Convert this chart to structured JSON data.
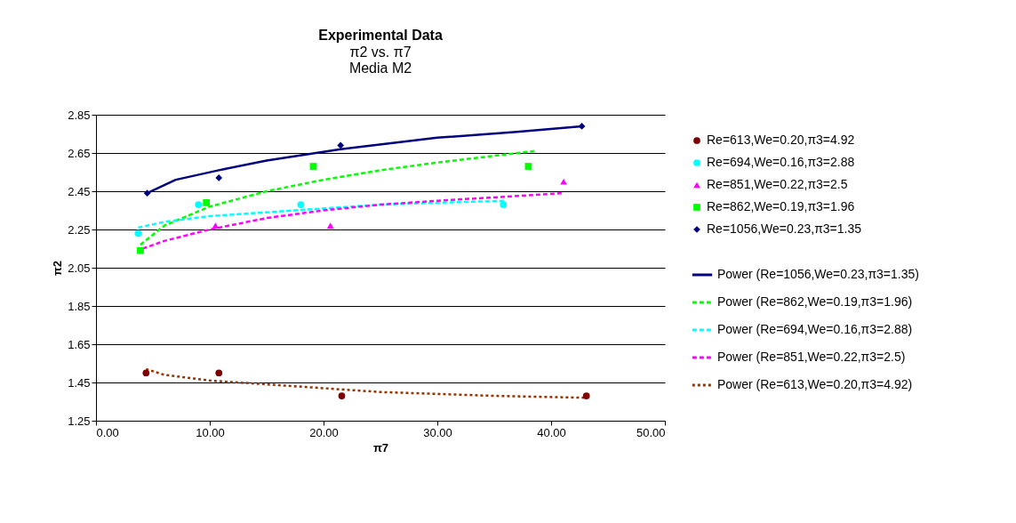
{
  "chart_data": {
    "type": "line",
    "title": "Experimental Data",
    "subtitle": "π2 vs. π7\nMedia M2",
    "xlabel": "π7",
    "ylabel": "π2",
    "xlim": [
      0,
      50
    ],
    "xticks": [
      {
        "value": 0,
        "label": "0.00"
      },
      {
        "value": 10,
        "label": "10.00"
      },
      {
        "value": 20,
        "label": "20.00"
      },
      {
        "value": 30,
        "label": "30.00"
      },
      {
        "value": 40,
        "label": "40.00"
      },
      {
        "value": 50,
        "label": "50.00"
      }
    ],
    "ylim": [
      1.25,
      2.85
    ],
    "yticks": [
      1.25,
      1.45,
      1.65,
      1.85,
      2.05,
      2.25,
      2.45,
      2.65,
      2.85
    ],
    "grid": "y",
    "legend": "right",
    "series": [
      {
        "name": "Re=613,We=0.20,π3=4.92",
        "type": "scatter",
        "marker": "circle",
        "color": "#800000",
        "x": [
          4.4,
          10.8,
          21.6,
          43.1
        ],
        "values": [
          1.5,
          1.5,
          1.38,
          1.38
        ]
      },
      {
        "name": "Re=694,We=0.16,π3=2.88",
        "type": "scatter",
        "marker": "circle",
        "color": "#00ffff",
        "x": [
          3.7,
          9.0,
          18.0,
          35.8
        ],
        "values": [
          2.23,
          2.38,
          2.38,
          2.38
        ]
      },
      {
        "name": "Re=851,We=0.22,π3=2.5",
        "type": "scatter",
        "marker": "triangle",
        "color": "#ff00ff",
        "x": [
          10.5,
          20.6,
          41.1
        ],
        "values": [
          2.27,
          2.27,
          2.5
        ]
      },
      {
        "name": "Re=862,We=0.19,π3=1.96",
        "type": "scatter",
        "marker": "square",
        "color": "#00ff00",
        "x": [
          3.9,
          9.7,
          19.1,
          38.0
        ],
        "values": [
          2.14,
          2.39,
          2.58,
          2.58
        ]
      },
      {
        "name": "Re=1056,We=0.23,π3=1.35",
        "type": "scatter",
        "marker": "diamond",
        "color": "#000080",
        "x": [
          4.5,
          10.8,
          21.5,
          42.7
        ],
        "values": [
          2.44,
          2.52,
          2.69,
          2.79
        ]
      },
      {
        "name": "Power (Re=1056,We=0.23,π3=1.35)",
        "line_style": "solid",
        "color": "#000080",
        "x": [
          4.5,
          7,
          10.8,
          15,
          21.5,
          30,
          37,
          42.7
        ],
        "values": [
          2.44,
          2.51,
          2.56,
          2.61,
          2.67,
          2.73,
          2.76,
          2.79
        ]
      },
      {
        "name": "Power (Re=862,We=0.19,π3=1.96)",
        "line_style": "dashed",
        "color": "#00ff00",
        "x": [
          3.9,
          6,
          10,
          15,
          20,
          25,
          30,
          38.5
        ],
        "values": [
          2.17,
          2.27,
          2.37,
          2.45,
          2.51,
          2.56,
          2.6,
          2.66
        ]
      },
      {
        "name": "Power (Re=694,We=0.16,π3=2.88)",
        "line_style": "dashed",
        "color": "#00ffff",
        "x": [
          3.7,
          6,
          10,
          15,
          20,
          25,
          30,
          36
        ],
        "values": [
          2.26,
          2.29,
          2.32,
          2.34,
          2.36,
          2.38,
          2.39,
          2.4
        ]
      },
      {
        "name": "Power (Re=851,We=0.22,π3=2.5)",
        "line_style": "dashed",
        "color": "#ff00ff",
        "x": [
          4.1,
          6,
          10,
          15,
          20,
          25,
          30,
          41.1
        ],
        "values": [
          2.15,
          2.19,
          2.25,
          2.31,
          2.35,
          2.38,
          2.4,
          2.44
        ]
      },
      {
        "name": "Power (Re=613,We=0.20,π3=4.92)",
        "line_style": "dotted",
        "color": "#993300",
        "x": [
          4.4,
          6,
          10,
          15,
          20,
          25,
          30,
          35,
          43.1
        ],
        "values": [
          1.52,
          1.49,
          1.46,
          1.44,
          1.42,
          1.4,
          1.39,
          1.38,
          1.37
        ]
      }
    ]
  }
}
